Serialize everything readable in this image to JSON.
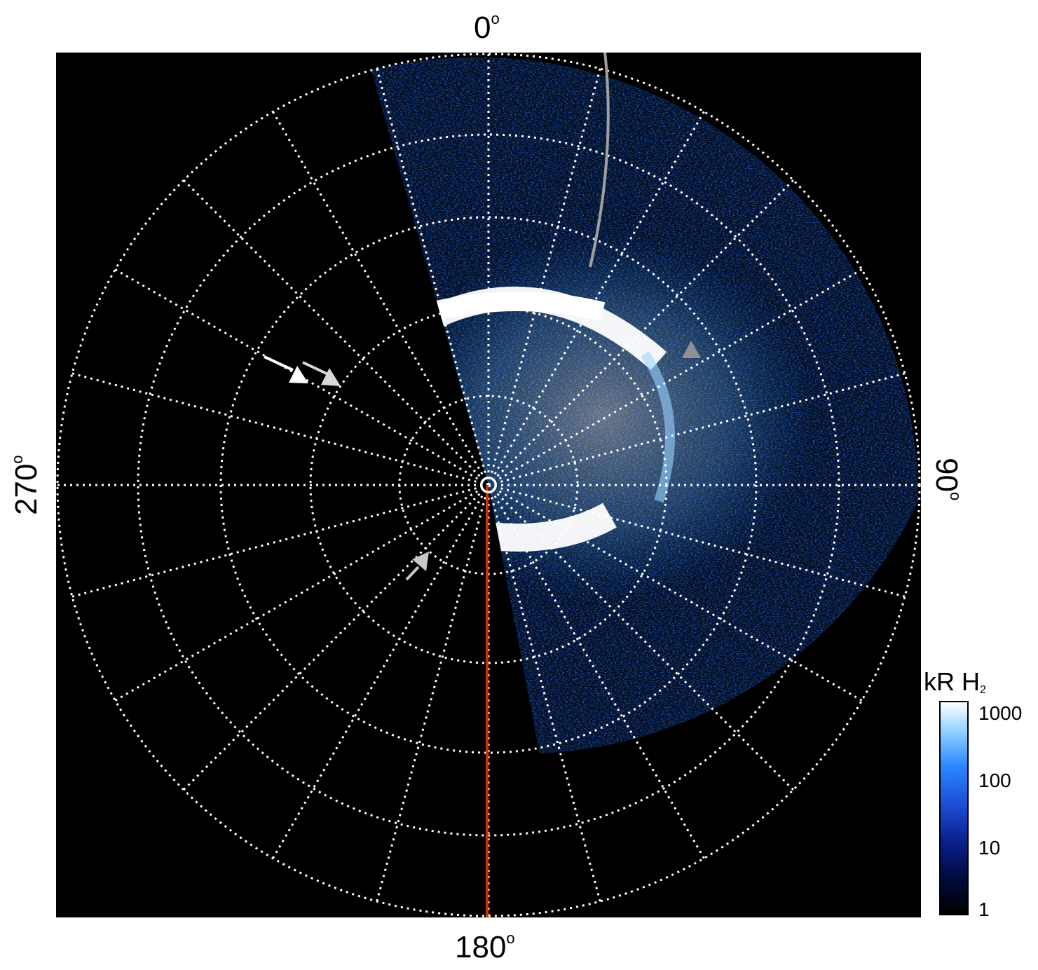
{
  "figure": {
    "longitude_labels": {
      "top": "0",
      "right": "90",
      "bottom": "180",
      "left": "270",
      "degree_symbol": "o"
    },
    "colorbar": {
      "title_main": "kR H",
      "title_sub": "2",
      "ticks": [
        "1000",
        "100",
        "10",
        "1"
      ],
      "scale": "log",
      "range": [
        1,
        1000
      ],
      "colors": [
        "#000000",
        "#0a1f8c",
        "#2a88ff",
        "#ffffff"
      ]
    },
    "grid": {
      "style": "dotted",
      "color": "#ffffff",
      "meridian_spacing_deg": 15,
      "circles": 5
    },
    "overlays": {
      "meridian_line_color": "#cc3300",
      "arc_color": "#a0a0a0",
      "arrow_colors": [
        "#ffffff",
        "#d8d8d8",
        "#c8c8c8"
      ],
      "triangle_color": "#909090"
    }
  }
}
